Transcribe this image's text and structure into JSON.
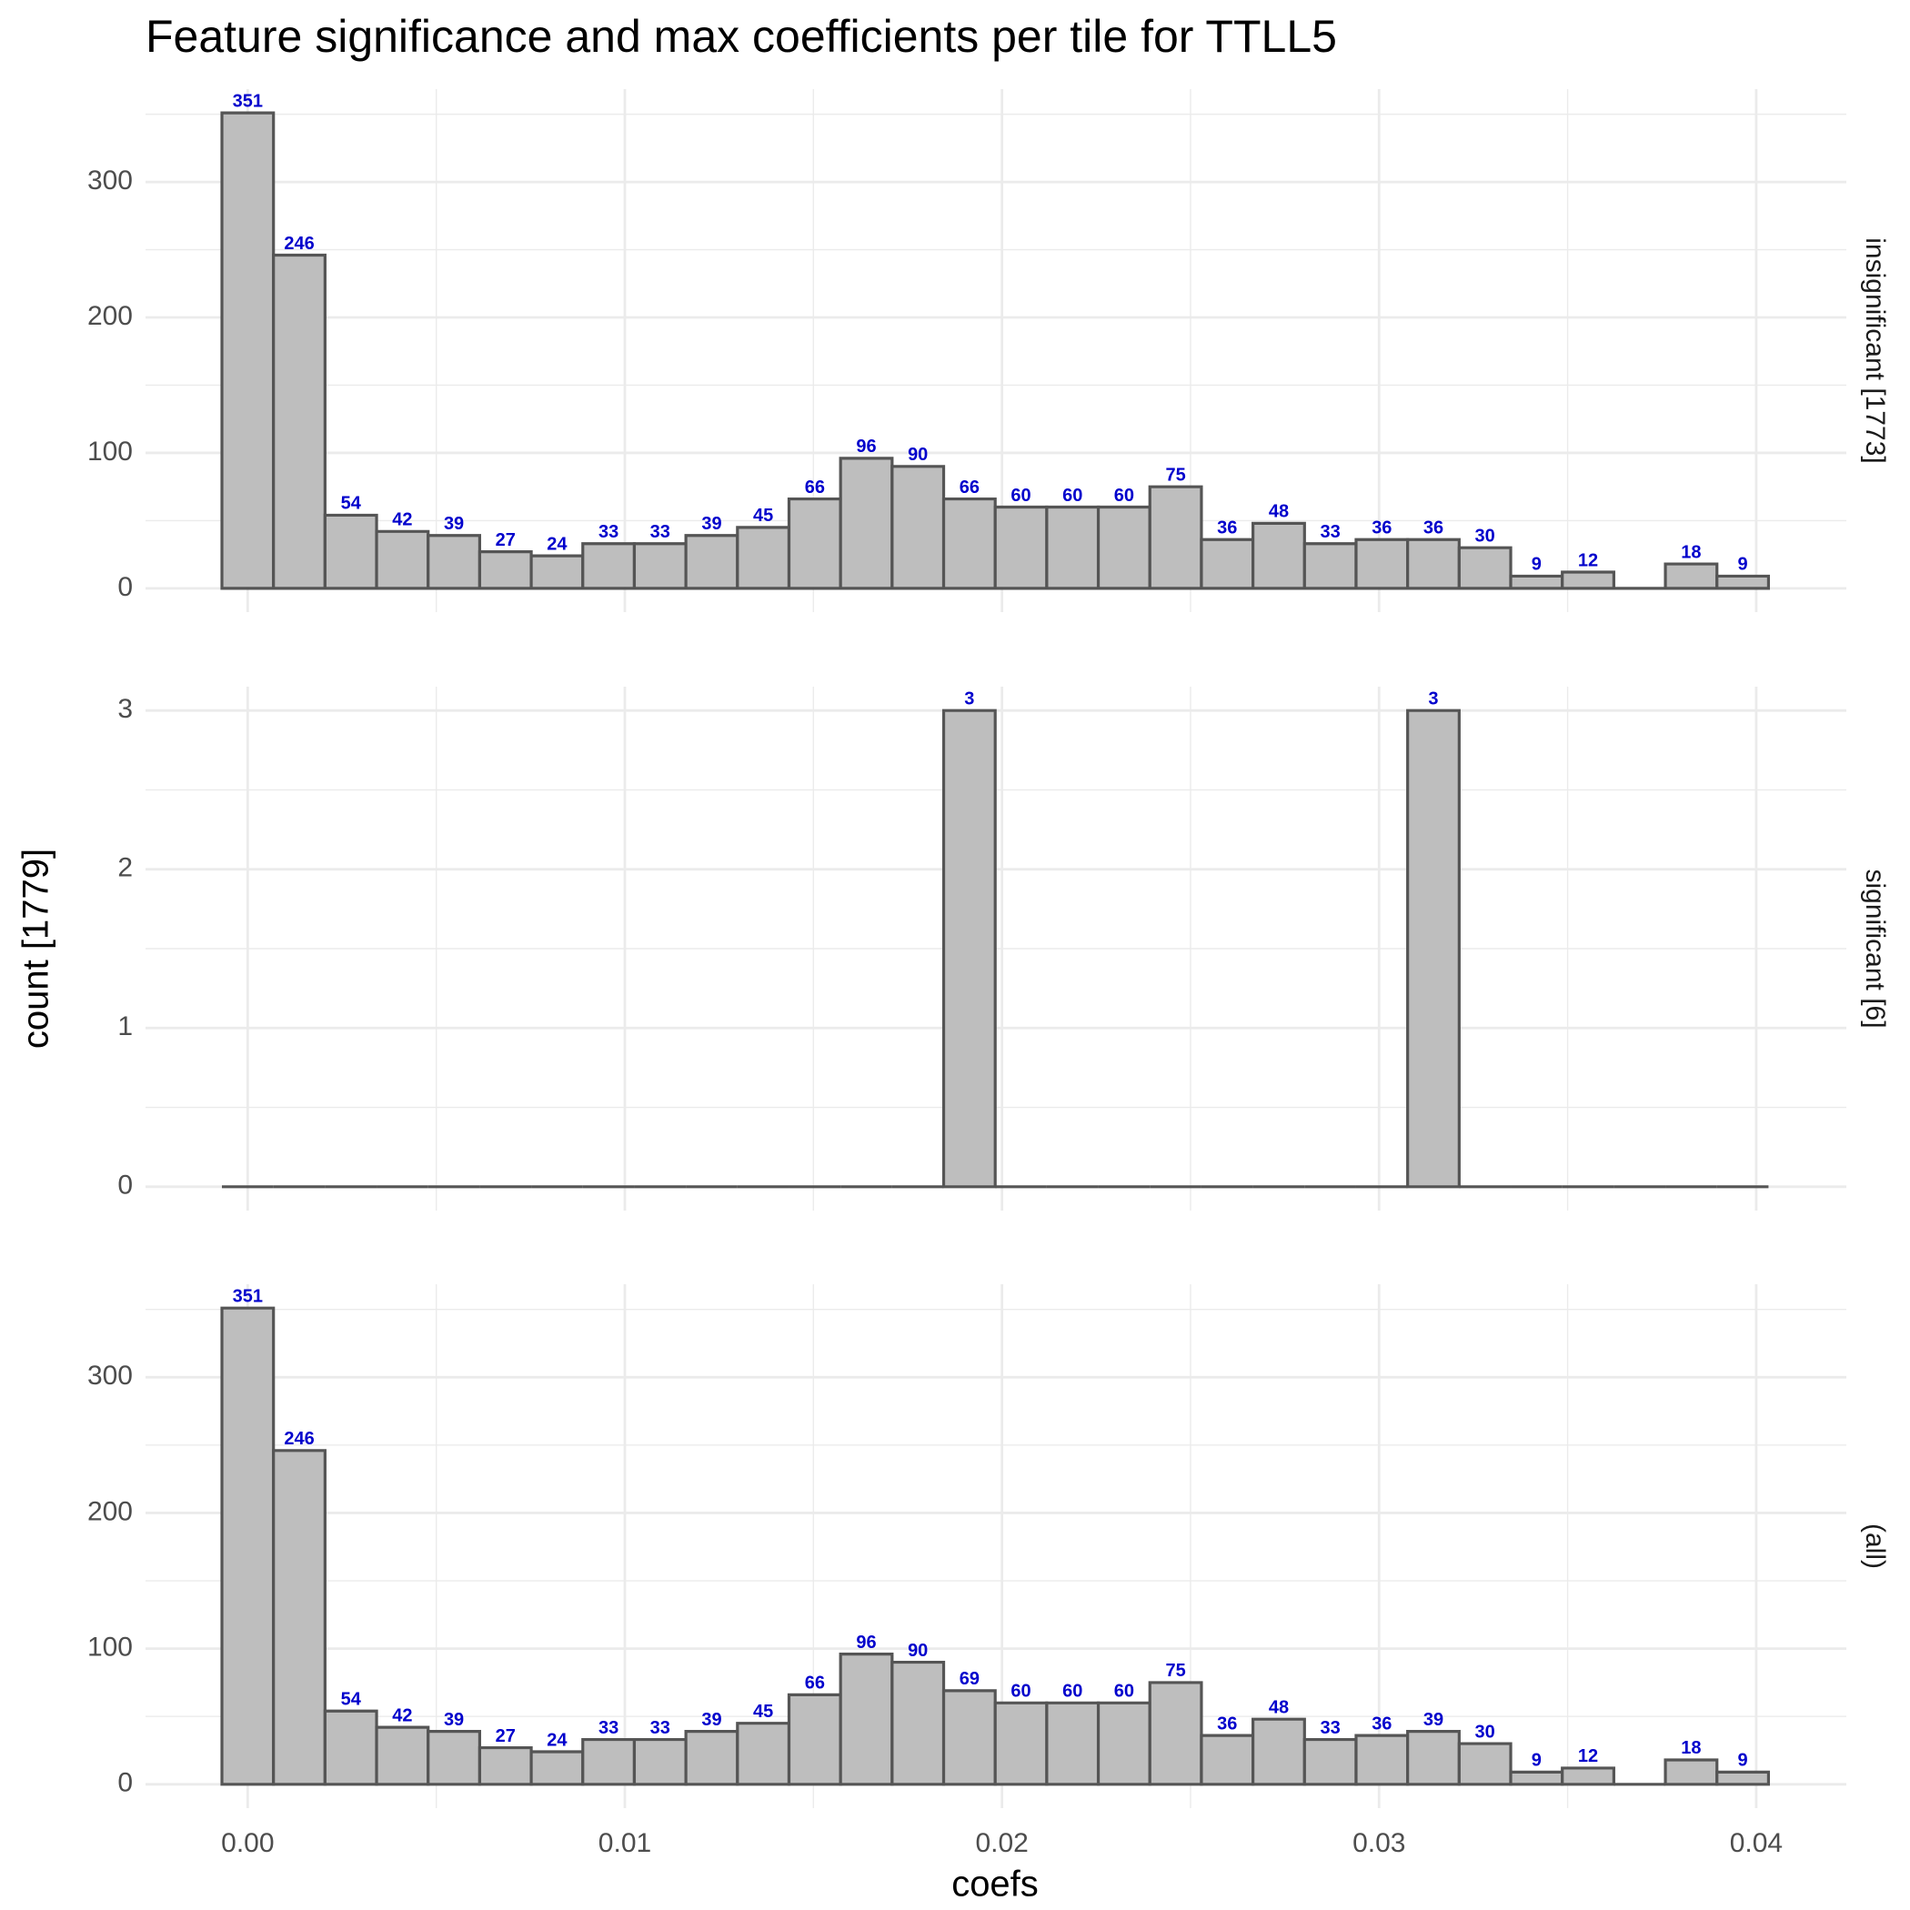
{
  "chart_data": {
    "type": "histogram",
    "title": "Feature significance and max coefficients per tile for TTLL5",
    "xlabel": "coefs",
    "ylabel": "count [1779]",
    "xlim": [
      -0.00271,
      0.04239
    ],
    "xticks": [
      {
        "value": 0,
        "label": "0.00"
      },
      0.01,
      0.02,
      0.03,
      0.04
    ],
    "grid": true,
    "color": "#bebebe",
    "edgecolor": "#555555",
    "label_color": "#0000cc",
    "bins": [
      -0.000684,
      0.000683,
      0.00205,
      0.003417,
      0.004784,
      0.006151,
      0.007518,
      0.008885,
      0.010252,
      0.011619,
      0.012986,
      0.014353,
      0.01572,
      0.017087,
      0.018454,
      0.019821,
      0.021188,
      0.022555,
      0.023922,
      0.025289,
      0.026656,
      0.028023,
      0.02939,
      0.030757,
      0.032124,
      0.033491,
      0.034858,
      0.036225,
      0.037592,
      0.038959,
      0.040326
    ],
    "facets": [
      {
        "strip": "insignificant [1773]",
        "ylim": [
          -17.55,
          368.55
        ],
        "yticks": [
          0,
          100,
          200,
          300
        ],
        "values": [
          351,
          246,
          54,
          42,
          39,
          27,
          24,
          33,
          33,
          39,
          45,
          66,
          96,
          90,
          66,
          60,
          60,
          60,
          75,
          36,
          48,
          33,
          36,
          36,
          30,
          9,
          12,
          0,
          18,
          9
        ]
      },
      {
        "strip": "significant [6]",
        "ylim": [
          -0.15,
          3.15
        ],
        "yticks": [
          0,
          1,
          2,
          3
        ],
        "values": [
          0,
          0,
          0,
          0,
          0,
          0,
          0,
          0,
          0,
          0,
          0,
          0,
          0,
          0,
          3,
          0,
          0,
          0,
          0,
          0,
          0,
          0,
          0,
          3,
          0,
          0,
          0,
          0,
          0,
          0
        ]
      },
      {
        "strip": "(all)",
        "ylim": [
          -17.55,
          368.55
        ],
        "yticks": [
          0,
          100,
          200,
          300
        ],
        "values": [
          351,
          246,
          54,
          42,
          39,
          27,
          24,
          33,
          33,
          39,
          45,
          66,
          96,
          90,
          69,
          60,
          60,
          60,
          75,
          36,
          48,
          33,
          36,
          39,
          30,
          9,
          12,
          0,
          18,
          9
        ]
      }
    ]
  }
}
